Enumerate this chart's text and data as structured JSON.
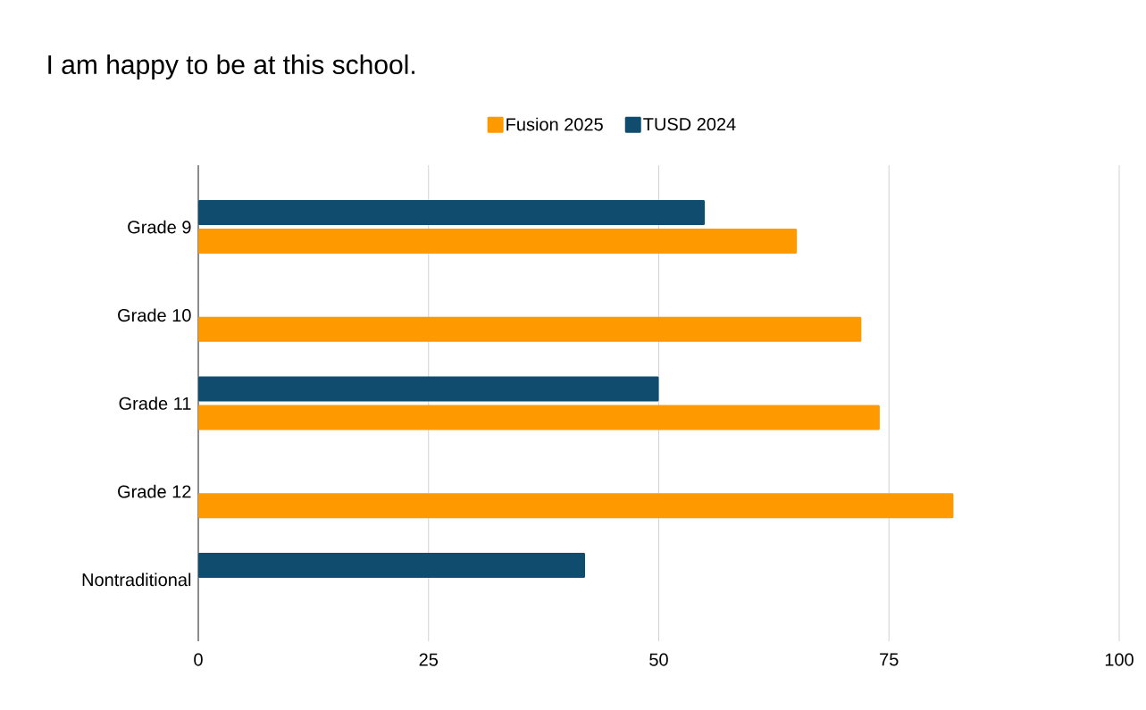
{
  "chart_data": {
    "type": "bar",
    "orientation": "horizontal",
    "title": "I am happy to be at this school.",
    "categories": [
      "Grade 9",
      "Grade 10",
      "Grade 11",
      "Grade 12",
      "Nontraditional"
    ],
    "series": [
      {
        "name": "Fusion 2025",
        "color": "#ff9900",
        "values": [
          65,
          72,
          74,
          82,
          null
        ]
      },
      {
        "name": "TUSD 2024",
        "color": "#0f4c6e",
        "values": [
          55,
          null,
          50,
          null,
          42
        ]
      }
    ],
    "xlim": [
      0,
      100
    ],
    "xticks": [
      0,
      25,
      50,
      75,
      100
    ],
    "grid": "x",
    "legend": "top"
  }
}
